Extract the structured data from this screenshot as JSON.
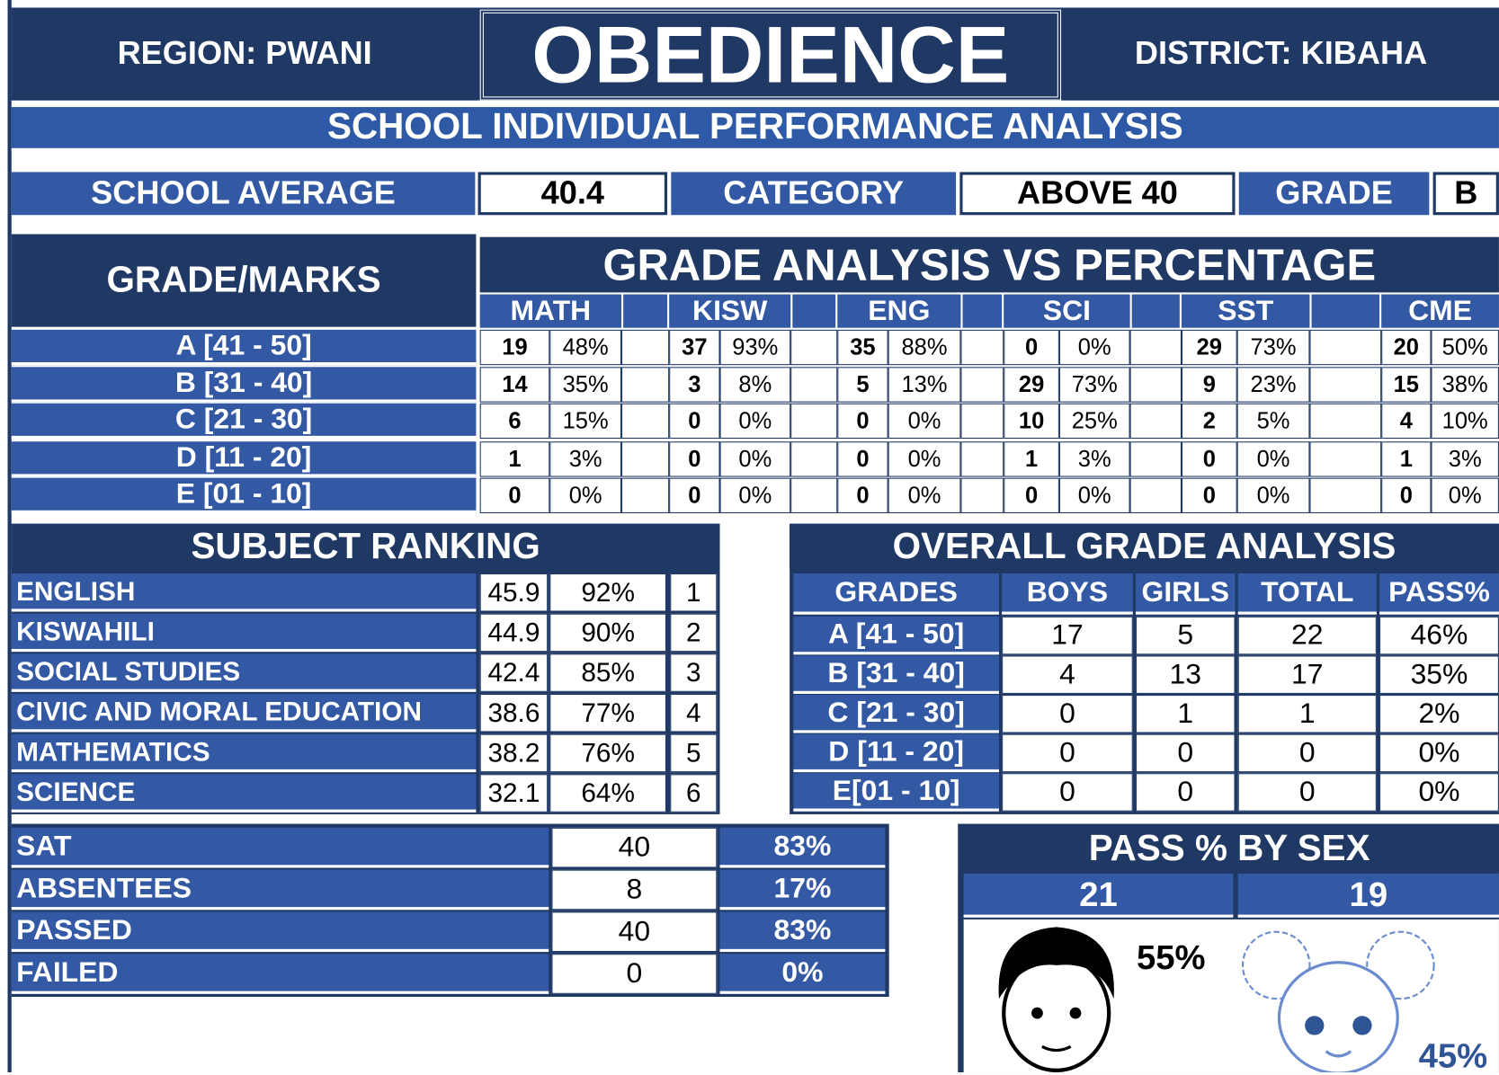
{
  "header": {
    "region": "REGION: PWANI",
    "title": "OBEDIENCE",
    "district": "DISTRICT: KIBAHA",
    "subtitle": "SCHOOL INDIVIDUAL PERFORMANCE ANALYSIS"
  },
  "summary": {
    "average_label": "SCHOOL AVERAGE",
    "average": 40.4,
    "category_label": "CATEGORY",
    "category": "ABOVE 40",
    "grade_label": "GRADE",
    "grade": "B"
  },
  "grade_analysis": {
    "row_header": "GRADE/MARKS",
    "title": "GRADE ANALYSIS VS PERCENTAGE",
    "grades": [
      "A [41 - 50]",
      "B [31 - 40]",
      "C [21 - 30]",
      "D [11 - 20]",
      "E [01 - 10]"
    ],
    "subjects": [
      {
        "name": "MATH",
        "counts": [
          19,
          14,
          6,
          1,
          0
        ],
        "percents": [
          "48%",
          "35%",
          "15%",
          "3%",
          "0%"
        ]
      },
      {
        "name": "KISW",
        "counts": [
          37,
          3,
          0,
          0,
          0
        ],
        "percents": [
          "93%",
          "8%",
          "0%",
          "0%",
          "0%"
        ]
      },
      {
        "name": "ENG",
        "counts": [
          35,
          5,
          0,
          0,
          0
        ],
        "percents": [
          "88%",
          "13%",
          "0%",
          "0%",
          "0%"
        ]
      },
      {
        "name": "SCI",
        "counts": [
          0,
          29,
          10,
          1,
          0
        ],
        "percents": [
          "0%",
          "73%",
          "25%",
          "3%",
          "0%"
        ]
      },
      {
        "name": "SST",
        "counts": [
          29,
          9,
          2,
          0,
          0
        ],
        "percents": [
          "73%",
          "23%",
          "5%",
          "0%",
          "0%"
        ]
      },
      {
        "name": "CME",
        "counts": [
          20,
          15,
          4,
          1,
          0
        ],
        "percents": [
          "50%",
          "38%",
          "10%",
          "3%",
          "0%"
        ]
      }
    ]
  },
  "subject_ranking": {
    "title": "SUBJECT RANKING",
    "rows": [
      {
        "subject": "ENGLISH",
        "average": 45.9,
        "percent": "92%",
        "rank": 1
      },
      {
        "subject": "KISWAHILI",
        "average": 44.9,
        "percent": "90%",
        "rank": 2
      },
      {
        "subject": "SOCIAL STUDIES",
        "average": 42.4,
        "percent": "85%",
        "rank": 3
      },
      {
        "subject": "CIVIC AND MORAL EDUCATION",
        "average": 38.6,
        "percent": "77%",
        "rank": 4
      },
      {
        "subject": "MATHEMATICS",
        "average": 38.2,
        "percent": "76%",
        "rank": 5
      },
      {
        "subject": "SCIENCE",
        "average": 32.1,
        "percent": "64%",
        "rank": 6
      }
    ]
  },
  "overall": {
    "title": "OVERALL GRADE ANALYSIS",
    "headers": [
      "GRADES",
      "BOYS",
      "GIRLS",
      "TOTAL",
      "PASS%"
    ],
    "rows": [
      [
        "A [41 - 50]",
        17,
        5,
        22,
        "46%"
      ],
      [
        "B [31 - 40]",
        4,
        13,
        17,
        "35%"
      ],
      [
        "C [21 - 30]",
        0,
        1,
        1,
        "2%"
      ],
      [
        "D [11 - 20]",
        0,
        0,
        0,
        "0%"
      ],
      [
        "E[01 - 10]",
        0,
        0,
        0,
        "0%"
      ]
    ]
  },
  "stats": {
    "rows": [
      [
        "SAT",
        40,
        "83%"
      ],
      [
        "ABSENTEES",
        8,
        "17%"
      ],
      [
        "PASSED",
        40,
        "83%"
      ],
      [
        "FAILED",
        0,
        "0%"
      ]
    ]
  },
  "pass_by_sex": {
    "title": "PASS % BY SEX",
    "boys": 21,
    "girls": 19,
    "boys_percent": "55%",
    "girls_percent": "45%"
  }
}
